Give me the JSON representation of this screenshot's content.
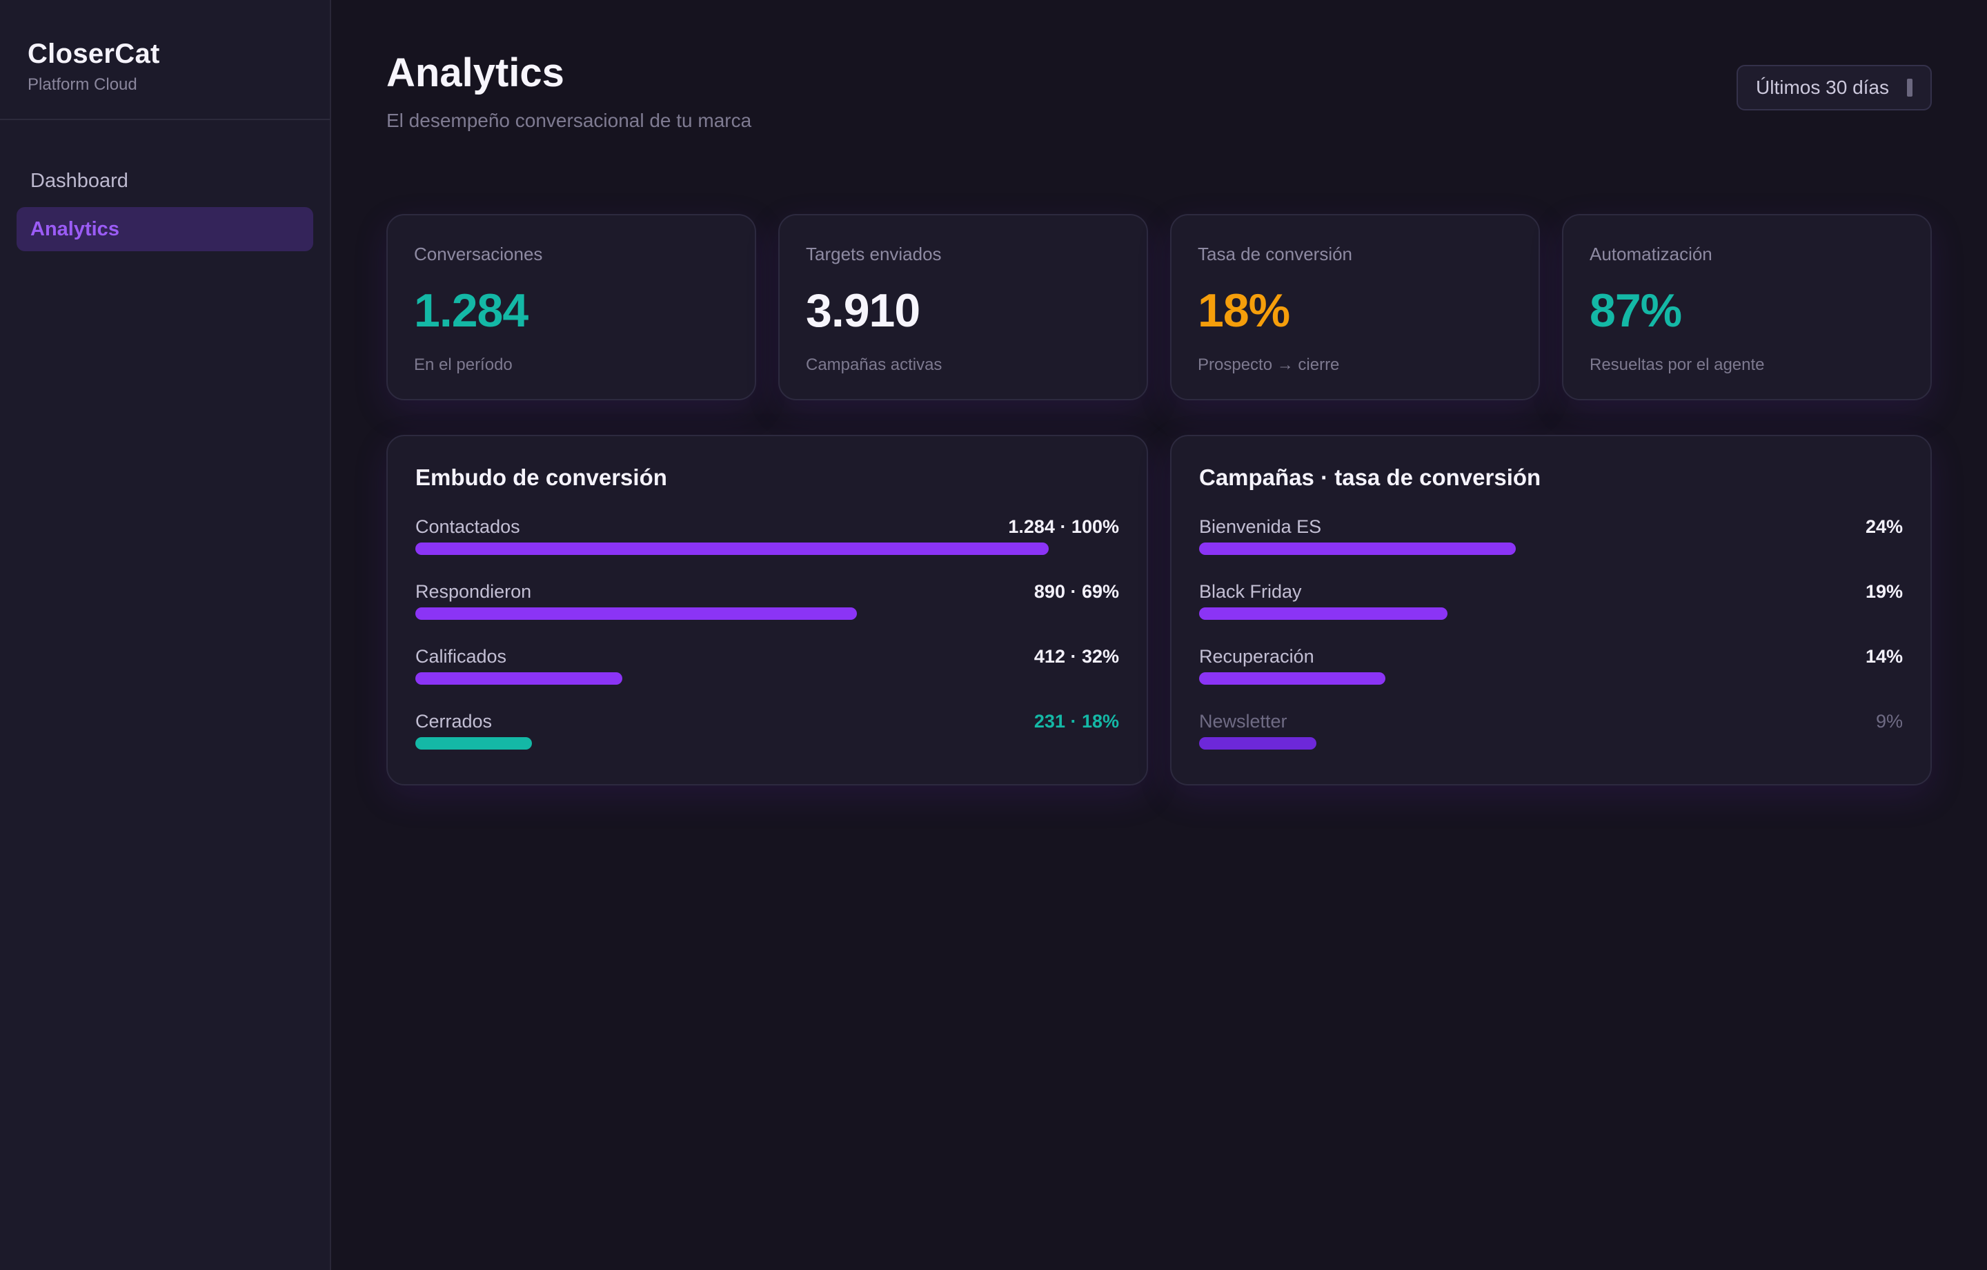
{
  "sidebar": {
    "brand": "CloserCat",
    "brand_sub": "Platform Cloud",
    "items": [
      {
        "label": "Dashboard",
        "active": false
      },
      {
        "label": "Analytics",
        "active": true
      }
    ]
  },
  "header": {
    "title": "Analytics",
    "subtitle": "El desempeño conversacional de tu marca",
    "range_label": "Últimos 30 días",
    "range_icon": "calendar-bar-icon"
  },
  "kpis": [
    {
      "label": "Conversaciones",
      "value": "1.284",
      "foot": "En el período",
      "color": "#14b8a6"
    },
    {
      "label": "Targets enviados",
      "value": "3.910",
      "foot": "Campañas activas",
      "color": "#f7f5fc"
    },
    {
      "label": "Tasa de conversión",
      "value": "18%",
      "foot": "Prospecto → cierre",
      "color": "#f59e0b"
    },
    {
      "label": "Automatización",
      "value": "87%",
      "foot": "Resueltas por el agente",
      "color": "#14b8a6"
    }
  ],
  "funnel": {
    "title": "Embudo de conversión",
    "rows": [
      {
        "label": "Contactados",
        "value": "1.284 · 100%",
        "fraction": 0.9,
        "color": "#8b34f5",
        "value_color": "#f3f1fa"
      },
      {
        "label": "Respondieron",
        "value": "890 · 69%",
        "fraction": 0.627,
        "color": "#8b34f5",
        "value_color": "#f3f1fa"
      },
      {
        "label": "Calificados",
        "value": "412 · 32%",
        "fraction": 0.294,
        "color": "#8b34f5",
        "value_color": "#f3f1fa"
      },
      {
        "label": "Cerrados",
        "value": "231 · 18%",
        "fraction": 0.166,
        "color": "#14b8a6",
        "value_color": "#14b8a6"
      }
    ]
  },
  "campaigns": {
    "title": "Campañas · tasa de conversión",
    "rows": [
      {
        "label": "Bienvenida ES",
        "value": "24%",
        "fraction": 0.45,
        "color": "#8b34f5",
        "muted": false
      },
      {
        "label": "Black Friday",
        "value": "19%",
        "fraction": 0.353,
        "color": "#8b34f5",
        "muted": false
      },
      {
        "label": "Recuperación",
        "value": "14%",
        "fraction": 0.265,
        "color": "#8b34f5",
        "muted": false
      },
      {
        "label": "Newsletter",
        "value": "9%",
        "fraction": 0.167,
        "color": "#6d28d9",
        "muted": true
      }
    ]
  }
}
